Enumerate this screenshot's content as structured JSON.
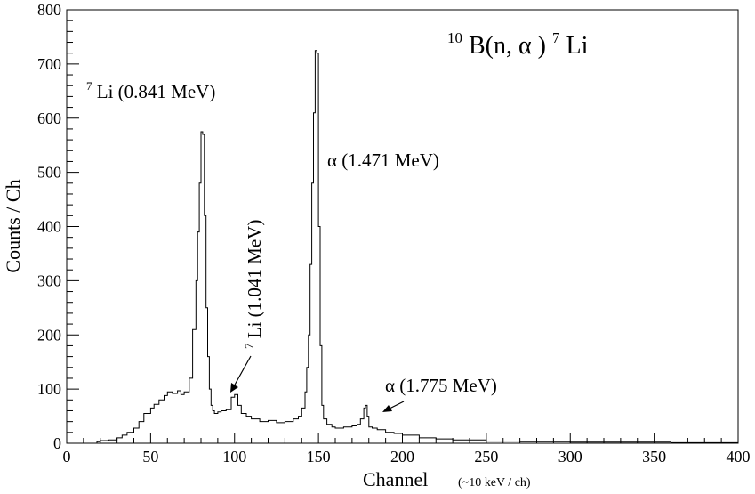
{
  "chart_data": {
    "type": "line",
    "style": "step-histogram",
    "xlabel": "Channel",
    "xlabel_unit": "(~10 keV / ch)",
    "ylabel": "Counts / Ch",
    "xlim": [
      0,
      400
    ],
    "ylim": [
      0,
      800
    ],
    "xticks": [
      "0",
      "50",
      "100",
      "150",
      "200",
      "250",
      "300",
      "350",
      "400"
    ],
    "yticks": [
      "0",
      "100",
      "200",
      "300",
      "400",
      "500",
      "600",
      "700",
      "800"
    ],
    "grid": false,
    "title": {
      "mass_number": "10",
      "element": "B(n,",
      "greek": "α",
      "close": ")",
      "product_mass": "7",
      "product": "Li"
    },
    "annotations": {
      "li_0841": {
        "sup": "7",
        "text": "Li (0.841 MeV)"
      },
      "alpha_1471": {
        "greek": "α",
        "text": " (1.471 MeV)"
      },
      "li_1041": {
        "sup": "7",
        "text": "Li (1.041 MeV)"
      },
      "alpha_1775": {
        "greek": "α",
        "text": " (1.775 MeV)"
      }
    },
    "series": [
      {
        "x": [
          0,
          18,
          20,
          25,
          30,
          33,
          36,
          40,
          43,
          46,
          50,
          52,
          55,
          58,
          60,
          63,
          66,
          68,
          70,
          73,
          75,
          77,
          78,
          79,
          80,
          81,
          82,
          83,
          84,
          85,
          86,
          87,
          88,
          90,
          92,
          95,
          98,
          100,
          102,
          104,
          107,
          110,
          115,
          120,
          125,
          130,
          135,
          138,
          140,
          142,
          143,
          144,
          145,
          146,
          147,
          148,
          149,
          150,
          151,
          152,
          153,
          155,
          158,
          160,
          165,
          170,
          173,
          175,
          177,
          178,
          179,
          180,
          182,
          185,
          190,
          195,
          200,
          210,
          220,
          230,
          250,
          270,
          300,
          330,
          360,
          400
        ],
        "y": [
          0,
          3,
          5,
          6,
          10,
          15,
          20,
          28,
          40,
          55,
          65,
          72,
          80,
          88,
          95,
          92,
          97,
          90,
          95,
          120,
          210,
          300,
          390,
          480,
          575,
          570,
          420,
          250,
          160,
          100,
          70,
          60,
          55,
          58,
          60,
          62,
          85,
          90,
          70,
          55,
          50,
          45,
          40,
          42,
          38,
          40,
          45,
          50,
          65,
          95,
          140,
          200,
          330,
          480,
          610,
          725,
          720,
          400,
          180,
          70,
          45,
          35,
          30,
          28,
          30,
          32,
          35,
          45,
          65,
          70,
          50,
          30,
          28,
          25,
          20,
          18,
          15,
          10,
          8,
          6,
          4,
          3,
          2,
          2,
          1,
          1
        ]
      }
    ]
  }
}
